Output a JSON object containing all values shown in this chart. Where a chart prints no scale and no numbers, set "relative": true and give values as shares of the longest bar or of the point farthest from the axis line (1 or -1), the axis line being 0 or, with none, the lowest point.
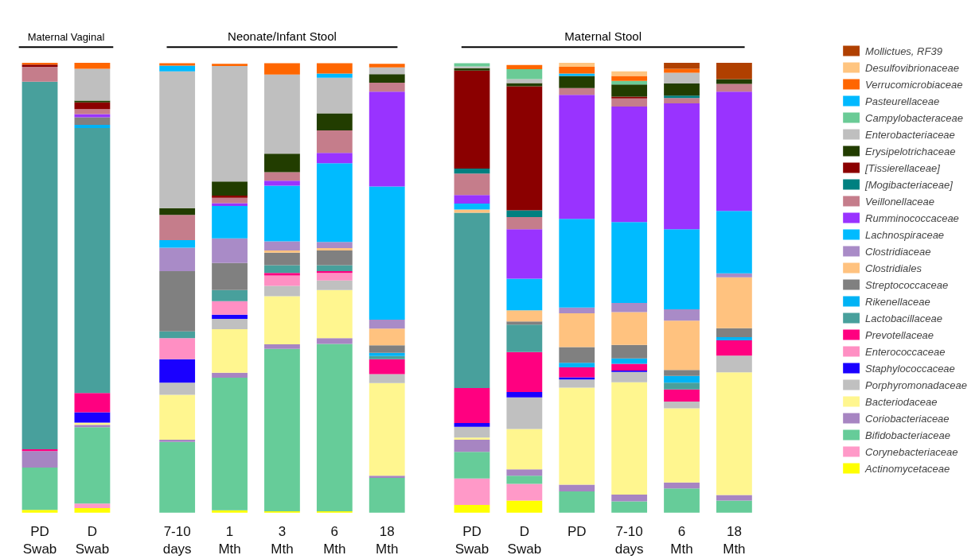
{
  "chart_data": {
    "type": "bar",
    "stacked": true,
    "relative": true,
    "legend": "right",
    "grid": false,
    "annotations": [
      "Maternal Vaginal",
      "Neonate/Infant Stool",
      "Maternal Stool"
    ],
    "categories": [
      "PD\nSwab",
      "D\nSwab",
      "7-10\ndays",
      "1\nMth",
      "3\nMth",
      "6\nMth",
      "18\nMth",
      "PD\nSwab",
      "D\nSwab",
      "PD",
      "7-10\ndays",
      "6\nMth",
      "18\nMth"
    ],
    "series": [
      {
        "name": "Actinomycetaceae",
        "color": "#ffff00",
        "values": [
          0.006,
          0.01,
          0,
          0.005,
          0.003,
          0.003,
          0,
          0.017,
          0.027,
          0,
          0,
          0,
          0
        ]
      },
      {
        "name": "Corynebacteriaceae",
        "color": "#ff99c8",
        "values": [
          0,
          0.01,
          0,
          0,
          0,
          0,
          0,
          0.059,
          0.037,
          0,
          0,
          0,
          0
        ]
      },
      {
        "name": "Bifidobacteriaceae",
        "color": "#66cc99",
        "values": [
          0.094,
          0.17,
          0.157,
          0.295,
          0.361,
          0.372,
          0.077,
          0.059,
          0.018,
          0.047,
          0.025,
          0.054,
          0.027
        ]
      },
      {
        "name": "Coriobacteriaceae",
        "color": "#a785c2",
        "values": [
          0.037,
          0.005,
          0.005,
          0.011,
          0.01,
          0.013,
          0.005,
          0.027,
          0.014,
          0.015,
          0.015,
          0.013,
          0.012
        ]
      },
      {
        "name": "Bacteriodaceae",
        "color": "#fff68f",
        "values": [
          0,
          0.005,
          0.1,
          0.097,
          0.107,
          0.107,
          0.206,
          0.005,
          0.09,
          0.216,
          0.25,
          0.165,
          0.273
        ]
      },
      {
        "name": "Porphyromonadaceae",
        "color": "#c0c0c0",
        "values": [
          0,
          0,
          0.027,
          0.023,
          0.023,
          0.021,
          0.02,
          0.024,
          0.07,
          0.018,
          0.023,
          0.015,
          0.037
        ]
      },
      {
        "name": "Staphylococcaceae",
        "color": "#1a00ff",
        "values": [
          0,
          0.023,
          0.052,
          0.009,
          0,
          0,
          0,
          0.008,
          0.012,
          0.005,
          0.003,
          0,
          0
        ]
      },
      {
        "name": "Enterococcaceae",
        "color": "#ff8fc3",
        "values": [
          0,
          0,
          0.047,
          0.03,
          0.023,
          0.017,
          0,
          0,
          0,
          0,
          0,
          0,
          0
        ]
      },
      {
        "name": "Prevotellaceae",
        "color": "#ff0080",
        "values": [
          0.004,
          0.043,
          0,
          0,
          0.006,
          0.004,
          0.033,
          0.078,
          0.089,
          0.022,
          0.015,
          0.027,
          0.034
        ]
      },
      {
        "name": "Lactobacillaceae",
        "color": "#48a09c",
        "values": [
          0.817,
          0.589,
          0.015,
          0.025,
          0.017,
          0.013,
          0.007,
          0.39,
          0.061,
          0,
          0,
          0.015,
          0
        ]
      },
      {
        "name": "Rikenellaceae",
        "color": "#00b3f5",
        "values": [
          0,
          0.007,
          0,
          0,
          0,
          0,
          0.007,
          0,
          0,
          0.01,
          0.012,
          0.015,
          0.007
        ]
      },
      {
        "name": "Streptococcaceae",
        "color": "#808080",
        "values": [
          0,
          0.017,
          0.134,
          0.06,
          0.028,
          0.033,
          0.017,
          0,
          0.007,
          0.035,
          0.03,
          0.013,
          0.02
        ]
      },
      {
        "name": "Clostridiales",
        "color": "#ffc27f",
        "values": [
          0,
          0,
          0,
          0,
          0.005,
          0.005,
          0.037,
          0.007,
          0.025,
          0.075,
          0.073,
          0.11,
          0.113
        ]
      },
      {
        "name": "Clostridiaceae",
        "color": "#a98bc7",
        "values": [
          0,
          0,
          0.052,
          0.055,
          0.02,
          0.014,
          0.02,
          0,
          0,
          0.013,
          0.02,
          0.025,
          0.009
        ]
      },
      {
        "name": "Lachnospiraceae",
        "color": "#00bbff",
        "values": [
          0,
          0,
          0.017,
          0.072,
          0.124,
          0.175,
          0.296,
          0.013,
          0.07,
          0.197,
          0.18,
          0.178,
          0.139
        ]
      },
      {
        "name": "Rumminococcaceae",
        "color": "#9933ff",
        "values": [
          0,
          0.007,
          0,
          0.006,
          0.011,
          0.023,
          0.211,
          0.019,
          0.11,
          0.276,
          0.257,
          0.28,
          0.265
        ]
      },
      {
        "name": "Veillonellaceae",
        "color": "#c57d8b",
        "values": [
          0.033,
          0.011,
          0.056,
          0.012,
          0.019,
          0.05,
          0.02,
          0.048,
          0.027,
          0.015,
          0.018,
          0.012,
          0.017
        ]
      },
      {
        "name": "[Mogibacteriaceae]",
        "color": "#008080",
        "values": [
          0,
          0,
          0,
          0,
          0,
          0,
          0,
          0.011,
          0.015,
          0,
          0,
          0.005,
          0
        ]
      },
      {
        "name": "[Tissierellaceae]",
        "color": "#8b0000",
        "values": [
          0.005,
          0.015,
          0,
          0.005,
          0,
          0,
          0,
          0.218,
          0.276,
          0,
          0.004,
          0,
          0
        ]
      },
      {
        "name": "Erysipelotrichaceae",
        "color": "#223d00",
        "values": [
          0,
          0.004,
          0.015,
          0.031,
          0.041,
          0.038,
          0.019,
          0.005,
          0.007,
          0.027,
          0.027,
          0.027,
          0.011
        ]
      },
      {
        "name": "Enterobacteriaceae",
        "color": "#bfbfbf",
        "values": [
          0,
          0.071,
          0.304,
          0.257,
          0.176,
          0.079,
          0.015,
          0.004,
          0.009,
          0,
          0,
          0.024,
          0
        ]
      },
      {
        "name": "Campylobacteraceae",
        "color": "#6acb96",
        "values": [
          0,
          0,
          0,
          0,
          0,
          0,
          0,
          0.007,
          0.022,
          0,
          0.008,
          0,
          0
        ]
      },
      {
        "name": "Pasteurellaceae",
        "color": "#00b9ff",
        "values": [
          0,
          0,
          0.013,
          0,
          0,
          0.009,
          0,
          0,
          0,
          0.005,
          0,
          0,
          0
        ]
      },
      {
        "name": "Verrucomicrobiaceae",
        "color": "#ff6600",
        "values": [
          0.004,
          0.013,
          0.005,
          0.005,
          0.025,
          0.023,
          0.008,
          0,
          0.009,
          0.015,
          0.011,
          0.009,
          0
        ]
      },
      {
        "name": "Desulfovibrionaceae",
        "color": "#ffc580",
        "values": [
          0,
          0,
          0,
          0,
          0,
          0,
          0,
          0,
          0,
          0.009,
          0.01,
          0,
          0
        ]
      },
      {
        "name": "Mollictues, RF39",
        "color": "#b04000",
        "values": [
          0,
          0,
          0,
          0,
          0,
          0,
          0,
          0,
          0,
          0,
          0,
          0.013,
          0.036
        ]
      }
    ]
  }
}
